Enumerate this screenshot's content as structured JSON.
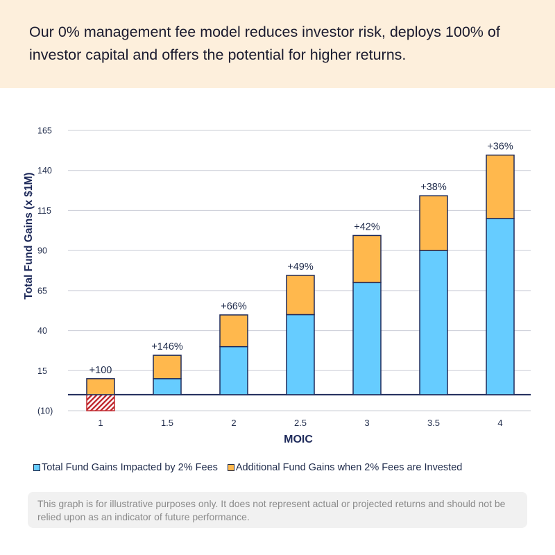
{
  "headline": "Our 0% management fee model reduces investor risk,  deploys 100% of investor capital and offers the potential for higher returns.",
  "chart_data": {
    "type": "bar",
    "stacked": true,
    "ylabel": "Total Fund Gains (x $1M)",
    "xlabel": "MOIC",
    "ylim": [
      -10,
      165
    ],
    "yticks": [
      -10,
      15,
      40,
      65,
      90,
      115,
      140,
      165
    ],
    "ytick_labels": [
      "(10)",
      "15",
      "40",
      "65",
      "90",
      "115",
      "140",
      "165"
    ],
    "categories": [
      "1",
      "1.5",
      "2",
      "2.5",
      "3",
      "3.5",
      "4"
    ],
    "series": [
      {
        "name": "Total Fund Gains Impacted by 2% Fees",
        "color": "#66ccff",
        "values": [
          -10,
          10,
          30,
          50,
          70,
          90,
          110
        ]
      },
      {
        "name": "Additional Fund Gains when 2% Fees are Invested",
        "color": "#ffb84d",
        "values": [
          10,
          14.6,
          19.8,
          24.5,
          29.4,
          34.2,
          39.6
        ]
      }
    ],
    "negative_fill_color": "#c0262c",
    "data_labels": [
      "+100",
      "+146%",
      "+66%",
      "+49%",
      "+42%",
      "+38%",
      "+36%"
    ],
    "grid": true,
    "legend_position": "bottom"
  },
  "legend": {
    "items": [
      "Total Fund Gains Impacted by 2% Fees",
      "Additional Fund Gains when 2% Fees are Invested"
    ]
  },
  "disclaimer": "This graph is for illustrative purposes only. It does not represent actual or projected returns and should not be relied upon as an indicator of future performance."
}
